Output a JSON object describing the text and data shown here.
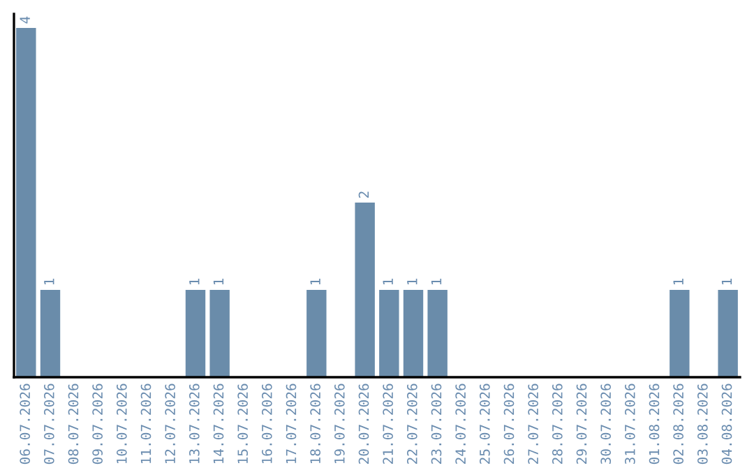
{
  "chart_data": {
    "type": "bar",
    "categories": [
      "06.07.2026",
      "07.07.2026",
      "08.07.2026",
      "09.07.2026",
      "10.07.2026",
      "11.07.2026",
      "12.07.2026",
      "13.07.2026",
      "14.07.2026",
      "15.07.2026",
      "16.07.2026",
      "17.07.2026",
      "18.07.2026",
      "19.07.2026",
      "20.07.2026",
      "21.07.2026",
      "22.07.2026",
      "23.07.2026",
      "24.07.2026",
      "25.07.2026",
      "26.07.2026",
      "27.07.2026",
      "28.07.2026",
      "29.07.2026",
      "30.07.2026",
      "31.07.2026",
      "01.08.2026",
      "02.08.2026",
      "03.08.2026",
      "04.08.2026"
    ],
    "values": [
      4,
      1,
      0,
      0,
      0,
      0,
      0,
      1,
      1,
      0,
      0,
      0,
      1,
      0,
      2,
      1,
      1,
      1,
      0,
      0,
      0,
      0,
      0,
      0,
      0,
      0,
      0,
      1,
      0,
      1
    ],
    "value_labels": [
      "4",
      "1",
      null,
      null,
      null,
      null,
      null,
      "1",
      "1",
      null,
      null,
      null,
      "1",
      null,
      "2",
      "1",
      "1",
      "1",
      null,
      null,
      null,
      null,
      null,
      null,
      null,
      null,
      null,
      "1",
      null,
      "1"
    ],
    "color": "#6a8caa",
    "tick_labels": "x",
    "grid": false,
    "legend": false
  }
}
